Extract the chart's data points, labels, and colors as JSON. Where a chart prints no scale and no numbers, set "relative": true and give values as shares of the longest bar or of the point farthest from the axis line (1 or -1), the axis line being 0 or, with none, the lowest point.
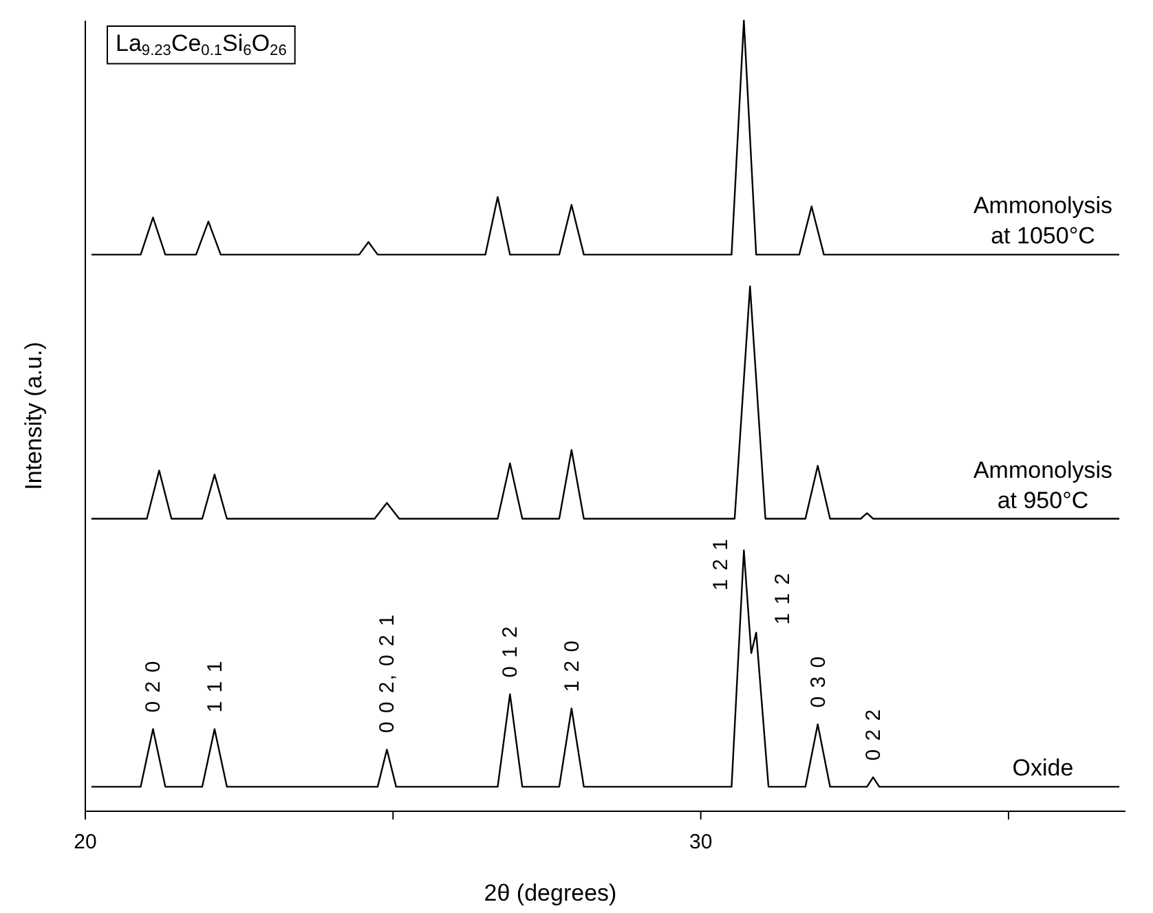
{
  "chart_data": {
    "type": "line",
    "title": "La$_{9.23}$Ce$_{0.1}$Si$_{6}$O$_{26}$",
    "xlabel": "2θ (degrees)",
    "ylabel": "Intensity (a.u.)",
    "relative": true,
    "xlim": [
      20,
      36.9
    ],
    "xticks": [
      20,
      {
        "value": 25,
        "label": null
      },
      30,
      {
        "value": 35,
        "label": null
      }
    ],
    "grid": false,
    "legend": false,
    "marker": "none",
    "line_style": "solid",
    "series": [
      {
        "name": "Oxide",
        "color": "#000000",
        "x": [
          20.1,
          20.9,
          21.1,
          21.3,
          21.9,
          22.1,
          22.3,
          24.75,
          24.9,
          25.05,
          26.7,
          26.9,
          27.1,
          27.7,
          27.9,
          28.1,
          30.5,
          30.7,
          30.82,
          30.9,
          31.1,
          31.7,
          31.9,
          32.1,
          32.7,
          32.8,
          32.9,
          36.8
        ],
        "values": [
          0.031,
          0.031,
          0.104,
          0.031,
          0.031,
          0.104,
          0.031,
          0.031,
          0.078,
          0.031,
          0.031,
          0.148,
          0.031,
          0.031,
          0.13,
          0.031,
          0.031,
          0.33,
          0.2,
          0.226,
          0.031,
          0.031,
          0.11,
          0.031,
          0.031,
          0.043,
          0.031,
          0.031
        ]
      },
      {
        "name": "Ammonolysis at 950°C",
        "color": "#000000",
        "x": [
          20.1,
          21.0,
          21.2,
          21.4,
          21.9,
          22.1,
          22.3,
          24.7,
          24.9,
          25.1,
          26.7,
          26.9,
          27.1,
          27.7,
          27.9,
          28.1,
          30.55,
          30.8,
          31.05,
          31.7,
          31.9,
          32.1,
          32.6,
          32.7,
          32.8,
          36.8
        ],
        "values": [
          0.37,
          0.37,
          0.431,
          0.37,
          0.37,
          0.426,
          0.37,
          0.37,
          0.39,
          0.37,
          0.37,
          0.44,
          0.37,
          0.37,
          0.457,
          0.37,
          0.37,
          0.664,
          0.37,
          0.37,
          0.437,
          0.37,
          0.37,
          0.377,
          0.37,
          0.37
        ]
      },
      {
        "name": "Ammonolysis at 1050°C",
        "color": "#000000",
        "x": [
          20.1,
          20.9,
          21.1,
          21.3,
          21.8,
          22.0,
          22.2,
          24.45,
          24.6,
          24.75,
          26.5,
          26.7,
          26.9,
          27.7,
          27.9,
          28.1,
          30.5,
          30.7,
          30.9,
          31.6,
          31.8,
          32.0,
          36.8
        ],
        "values": [
          0.704,
          0.704,
          0.751,
          0.704,
          0.704,
          0.746,
          0.704,
          0.704,
          0.72,
          0.704,
          0.704,
          0.777,
          0.704,
          0.704,
          0.767,
          0.704,
          0.704,
          1.0,
          0.704,
          0.704,
          0.765,
          0.704,
          0.704
        ]
      }
    ],
    "annotations": [
      {
        "text": "0 2 0",
        "x": 21.1,
        "y": 0.104
      },
      {
        "text": "1 1 1",
        "x": 22.1,
        "y": 0.104
      },
      {
        "text": "0 0 2, 0 2 1",
        "x": 24.9,
        "y": 0.078
      },
      {
        "text": "0 1 2",
        "x": 26.9,
        "y": 0.148
      },
      {
        "text": "1 2 0",
        "x": 27.9,
        "y": 0.13
      },
      {
        "text": "1 2 1",
        "x": 30.7,
        "y": 0.33
      },
      {
        "text": "1 1 2",
        "x": 30.9,
        "y": 0.226
      },
      {
        "text": "0 3 0",
        "x": 31.9,
        "y": 0.11
      },
      {
        "text": "0 2 2",
        "x": 32.8,
        "y": 0.043
      }
    ]
  }
}
